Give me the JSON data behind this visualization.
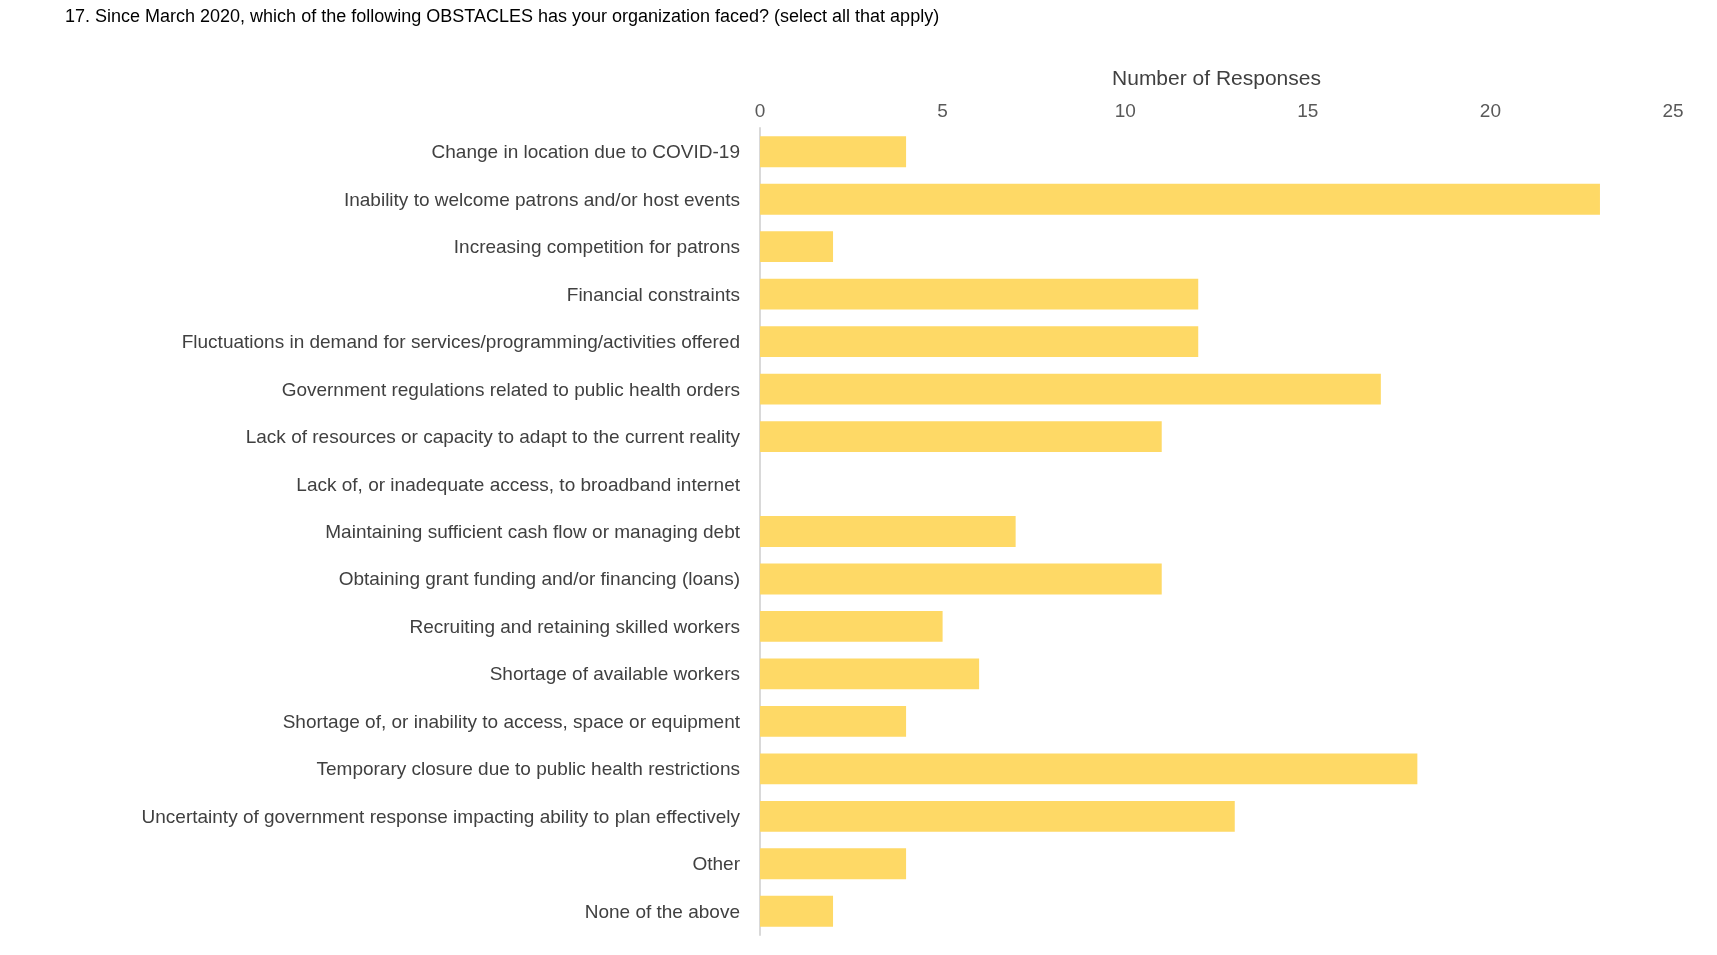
{
  "chart_data": {
    "type": "bar",
    "orientation": "horizontal",
    "title": "17. Since March 2020, which of the following OBSTACLES has your organization faced? (select all that apply)",
    "xlabel": "Number of Responses",
    "categories": [
      "Change in location due to COVID-19",
      "Inability to welcome patrons and/or host events",
      "Increasing competition for patrons",
      "Financial constraints",
      "Fluctuations in demand for services/programming/activities offered",
      "Government regulations related to public health orders",
      "Lack of resources or capacity to adapt to the current reality",
      "Lack of, or inadequate access, to broadband internet",
      "Maintaining sufficient cash flow or managing debt",
      "Obtaining grant funding and/or financing (loans)",
      "Recruiting and retaining skilled workers",
      "Shortage of available workers",
      "Shortage of, or inability to access, space or equipment",
      "Temporary closure due to public health restrictions",
      "Uncertainty of government response impacting ability to plan effectively",
      "Other",
      "None of the above"
    ],
    "values": [
      4,
      23,
      2,
      12,
      12,
      17,
      11,
      0,
      7,
      11,
      5,
      6,
      4,
      18,
      13,
      4,
      2
    ],
    "color": "#fed966",
    "xlim": [
      0,
      25
    ],
    "xticks": [
      0,
      5,
      10,
      15,
      20,
      25
    ],
    "grid": false
  }
}
